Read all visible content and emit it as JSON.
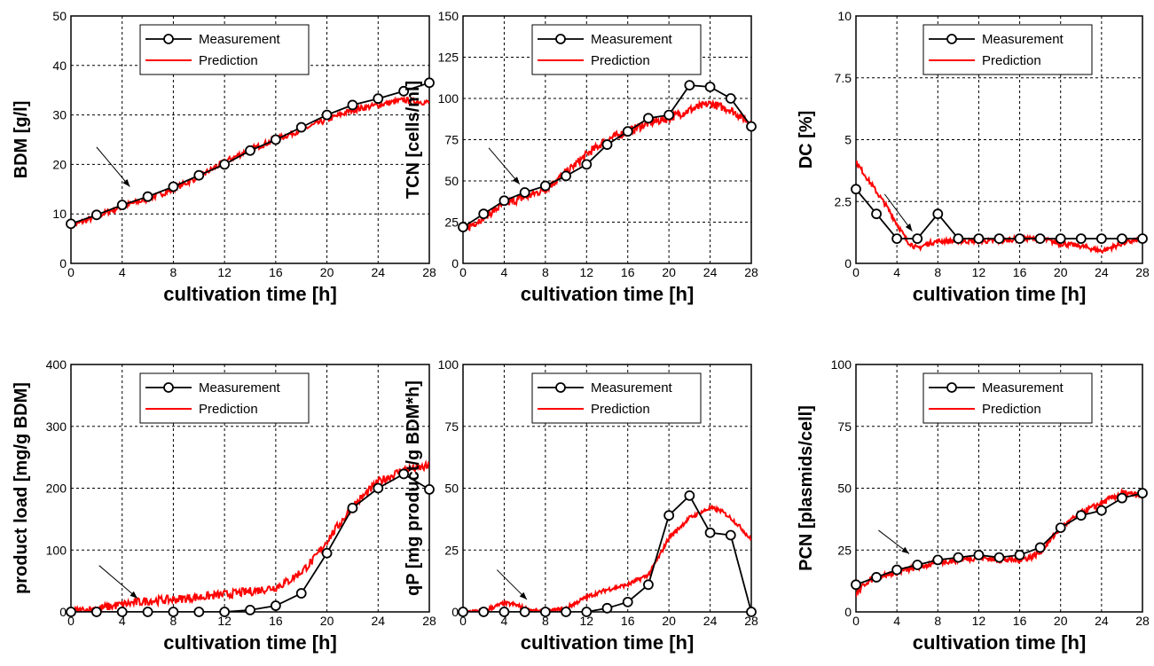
{
  "chart_data": [
    {
      "type": "line",
      "xlabel": "cultivation time [h]",
      "ylabel": "BDM [g/l]",
      "xlim": [
        0,
        28
      ],
      "ylim": [
        0,
        50
      ],
      "xticks": [
        0,
        4,
        8,
        12,
        16,
        20,
        24,
        28
      ],
      "yticks": [
        0,
        10,
        20,
        30,
        40,
        50
      ],
      "ytick_labels": [
        "0",
        "10",
        "20",
        "30",
        "40",
        "50"
      ],
      "grid": true,
      "legend": "top-center",
      "arrow": {
        "from": [
          2,
          23.5
        ],
        "to": [
          4.6,
          15.5
        ]
      },
      "series": [
        {
          "name": "Measurement",
          "color": "#000000",
          "marker": "circle",
          "x": [
            0,
            2,
            4,
            6,
            8,
            10,
            12,
            14,
            16,
            18,
            20,
            22,
            24,
            26,
            28
          ],
          "y": [
            8,
            9.8,
            11.8,
            13.5,
            15.5,
            17.8,
            20,
            22.8,
            25,
            27.5,
            30,
            32,
            33.3,
            34.8,
            36.5
          ]
        },
        {
          "name": "Prediction",
          "color": "#ff0000",
          "noise": 0.6,
          "x": [
            0,
            2,
            4,
            6,
            8,
            10,
            12,
            14,
            16,
            18,
            20,
            22,
            24,
            26,
            28
          ],
          "y": [
            7.5,
            9.5,
            11.5,
            13,
            15,
            17.5,
            20.5,
            23,
            25,
            27,
            29,
            31,
            32,
            33,
            32.5
          ]
        }
      ]
    },
    {
      "type": "line",
      "xlabel": "cultivation time [h]",
      "ylabel": "TCN [cells/ml]",
      "xlim": [
        0,
        28
      ],
      "ylim": [
        0,
        150
      ],
      "xticks": [
        0,
        4,
        8,
        12,
        16,
        20,
        24,
        28
      ],
      "yticks": [
        0,
        25,
        50,
        75,
        100,
        125,
        150
      ],
      "ytick_labels": [
        "0",
        "25",
        "50",
        "75",
        "100",
        "125",
        "150"
      ],
      "grid": true,
      "legend": "top-center",
      "arrow": {
        "from": [
          2.5,
          70
        ],
        "to": [
          5.5,
          48
        ]
      },
      "series": [
        {
          "name": "Measurement",
          "color": "#000000",
          "marker": "circle",
          "x": [
            0,
            2,
            4,
            6,
            8,
            10,
            12,
            14,
            16,
            18,
            20,
            22,
            24,
            26,
            28
          ],
          "y": [
            22,
            30,
            38,
            43,
            47,
            53,
            60,
            72,
            80,
            88,
            90,
            108,
            107,
            100,
            83
          ]
        },
        {
          "name": "Prediction",
          "color": "#ff0000",
          "noise": 2.5,
          "x": [
            0,
            2,
            4,
            6,
            8,
            10,
            12,
            14,
            16,
            18,
            20,
            22,
            24,
            26,
            28
          ],
          "y": [
            20,
            28,
            36,
            40,
            45,
            55,
            66,
            75,
            80,
            85,
            88,
            93,
            97,
            93,
            85
          ]
        }
      ]
    },
    {
      "type": "line",
      "xlabel": "cultivation time [h]",
      "ylabel": "DC [%]",
      "xlim": [
        0,
        28
      ],
      "ylim": [
        0,
        10
      ],
      "xticks": [
        0,
        4,
        8,
        12,
        16,
        20,
        24,
        28
      ],
      "yticks": [
        0,
        2.5,
        5,
        7.5,
        10
      ],
      "ytick_labels": [
        "0",
        "2.5",
        "5",
        "7.5",
        "10"
      ],
      "grid": true,
      "legend": "top-right",
      "arrow": {
        "from": [
          2.8,
          2.8
        ],
        "to": [
          5.5,
          1.3
        ]
      },
      "series": [
        {
          "name": "Measurement",
          "color": "#000000",
          "marker": "circle",
          "x": [
            0,
            2,
            4,
            6,
            8,
            10,
            12,
            14,
            16,
            18,
            20,
            22,
            24,
            26,
            28
          ],
          "y": [
            3,
            2,
            1,
            1,
            2,
            1,
            1,
            1,
            1,
            1,
            1,
            1,
            1,
            1,
            1
          ]
        },
        {
          "name": "Prediction",
          "color": "#ff0000",
          "noise": 0.1,
          "x": [
            0,
            1,
            2,
            3,
            4,
            5,
            6,
            7,
            8,
            10,
            12,
            14,
            16,
            18,
            20,
            22,
            24,
            26,
            28
          ],
          "y": [
            4.1,
            3.5,
            2.9,
            2.3,
            1.6,
            0.9,
            0.6,
            0.8,
            0.9,
            0.9,
            0.9,
            0.9,
            1.0,
            1.0,
            0.8,
            0.7,
            0.5,
            0.8,
            1.0
          ]
        }
      ]
    },
    {
      "type": "line",
      "xlabel": "cultivation time [h]",
      "ylabel": "product load [mg/g BDM]",
      "xlim": [
        0,
        28
      ],
      "ylim": [
        0,
        400
      ],
      "xticks": [
        0,
        4,
        8,
        12,
        16,
        20,
        24,
        28
      ],
      "yticks": [
        0,
        100,
        200,
        300,
        400
      ],
      "ytick_labels": [
        "0",
        "100",
        "200",
        "300",
        "400"
      ],
      "grid": true,
      "legend": "top-center",
      "arrow": {
        "from": [
          2.2,
          75
        ],
        "to": [
          5.2,
          22
        ]
      },
      "series": [
        {
          "name": "Measurement",
          "color": "#000000",
          "marker": "circle",
          "x": [
            0,
            2,
            4,
            6,
            8,
            10,
            12,
            14,
            16,
            18,
            20,
            22,
            24,
            26,
            28
          ],
          "y": [
            0,
            0,
            0,
            0,
            0,
            0,
            0,
            3,
            10,
            30,
            95,
            168,
            200,
            223,
            198
          ]
        },
        {
          "name": "Prediction",
          "color": "#ff0000",
          "noise": 7,
          "x": [
            0,
            2,
            4,
            6,
            8,
            10,
            12,
            14,
            16,
            17,
            18,
            19,
            20,
            22,
            24,
            26,
            28
          ],
          "y": [
            0,
            5,
            12,
            18,
            20,
            24,
            28,
            33,
            40,
            50,
            65,
            85,
            115,
            170,
            210,
            230,
            235
          ]
        }
      ]
    },
    {
      "type": "line",
      "xlabel": "cultivation time [h]",
      "ylabel": "qP [mg product/g BDM*h]",
      "xlim": [
        0,
        28
      ],
      "ylim": [
        0,
        100
      ],
      "xticks": [
        0,
        4,
        8,
        12,
        16,
        20,
        24,
        28
      ],
      "yticks": [
        0,
        25,
        50,
        75,
        100
      ],
      "ytick_labels": [
        "0",
        "25",
        "50",
        "75",
        "100"
      ],
      "grid": true,
      "legend": "top-center",
      "arrow": {
        "from": [
          3.3,
          17
        ],
        "to": [
          6.2,
          5
        ]
      },
      "series": [
        {
          "name": "Measurement",
          "color": "#000000",
          "marker": "circle",
          "x": [
            0,
            2,
            4,
            6,
            8,
            10,
            12,
            14,
            16,
            18,
            20,
            22,
            24,
            26,
            28
          ],
          "y": [
            0,
            0,
            0,
            0,
            0,
            0,
            0,
            1.5,
            4,
            11,
            39,
            47,
            32,
            31,
            0
          ]
        },
        {
          "name": "Prediction",
          "color": "#ff0000",
          "noise": 0.8,
          "x": [
            0,
            2,
            3,
            4,
            5,
            6,
            7,
            8,
            10,
            12,
            14,
            16,
            18,
            19,
            20,
            22,
            24,
            25,
            26,
            27,
            28
          ],
          "y": [
            0,
            0.5,
            2,
            3.5,
            3,
            1.5,
            0.3,
            0,
            1.5,
            6,
            9,
            11,
            15,
            22,
            30,
            38,
            42,
            41,
            38,
            34,
            29
          ]
        }
      ]
    },
    {
      "type": "line",
      "xlabel": "cultivation time [h]",
      "ylabel": "PCN [plasmids/cell]",
      "xlim": [
        0,
        28
      ],
      "ylim": [
        0,
        100
      ],
      "xticks": [
        0,
        4,
        8,
        12,
        16,
        20,
        24,
        28
      ],
      "yticks": [
        0,
        25,
        50,
        75,
        100
      ],
      "ytick_labels": [
        "0",
        "25",
        "50",
        "75",
        "100"
      ],
      "grid": true,
      "legend": "top-right",
      "arrow": {
        "from": [
          2.2,
          33
        ],
        "to": [
          5.2,
          23.5
        ]
      },
      "series": [
        {
          "name": "Measurement",
          "color": "#000000",
          "marker": "circle",
          "x": [
            0,
            2,
            4,
            6,
            8,
            10,
            12,
            14,
            16,
            18,
            20,
            22,
            24,
            26,
            28
          ],
          "y": [
            11,
            14,
            17,
            19,
            21,
            22,
            23,
            22,
            23,
            26,
            34,
            39,
            41,
            46,
            48
          ]
        },
        {
          "name": "Prediction",
          "color": "#ff0000",
          "noise": 1.2,
          "x": [
            0,
            1,
            2,
            4,
            6,
            8,
            10,
            12,
            14,
            16,
            17,
            18,
            19,
            20,
            22,
            24,
            26,
            28
          ],
          "y": [
            7,
            12,
            14,
            16,
            18,
            20,
            21,
            22,
            21,
            21,
            22,
            24,
            29,
            34,
            40,
            44,
            48,
            47
          ]
        }
      ]
    }
  ]
}
